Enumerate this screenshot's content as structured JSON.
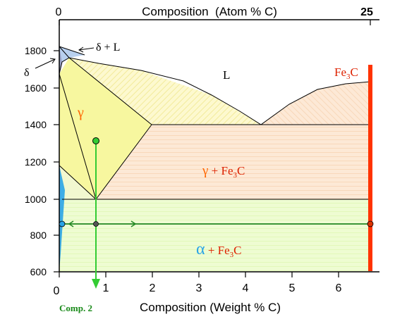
{
  "top_axis": {
    "title": "Composition  (Atom % C)",
    "tick_left": "0",
    "tick_right": "25"
  },
  "bottom_axis": {
    "title": "Composition (Weight % C)",
    "ticks": [
      "0",
      "1",
      "2",
      "3",
      "4",
      "5",
      "6"
    ],
    "comp_label": "Comp. 2"
  },
  "y_axis": {
    "ticks": [
      "600",
      "800",
      "1000",
      "1200",
      "1400",
      "1600",
      "1800"
    ]
  },
  "phase_labels": {
    "delta_l": "δ + L",
    "delta": "δ",
    "liquid": "L",
    "gamma": "γ",
    "fe3c_main": "Fe",
    "fe3c_sub": "3",
    "fe3c_tail": "C",
    "gamma_fe3c_gamma": "γ",
    "gamma_fe3c_plus": " + Fe",
    "gamma_fe3c_sub": "3",
    "gamma_fe3c_tail": "C",
    "alpha_fe3c_alpha": "α",
    "alpha_fe3c_plus": " + Fe",
    "alpha_fe3c_sub": "3",
    "alpha_fe3c_tail": "C"
  },
  "chart_data": {
    "type": "diagram",
    "x_axis_units": "Weight % C",
    "y_axis_units": "Temperature",
    "xlim": [
      0,
      6.7
    ],
    "ylim": [
      600,
      1850
    ],
    "composition_line_x": 0.8,
    "start_point": [
      0.8,
      1300
    ],
    "tie_line_temperature": 870,
    "tie_line_ends": [
      0.1,
      6.7
    ]
  },
  "colors": {
    "gamma": "#f5f59a",
    "liquid_hatch": "#fdf7bf",
    "gamma_fe3c": "#fbe4cf",
    "alpha_fe3c": "#ebfbc8",
    "fe3c_line": "#ff3300",
    "alpha": "#2aa4e6",
    "composition": "#33cc33",
    "tie_line": "#228822",
    "delta_l": "#aac8ee",
    "gamma_label": "#ff6600",
    "comp_label": "#1a8a1a"
  }
}
